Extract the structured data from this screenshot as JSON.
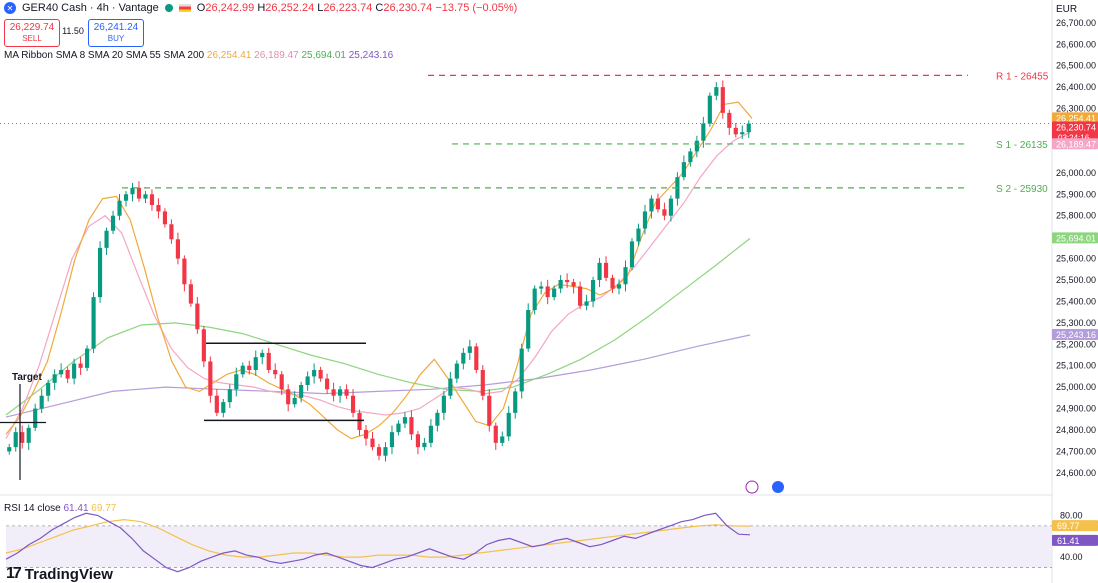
{
  "header": {
    "symbol": "GER40 Cash · 4h · Vantage",
    "open_label": "O",
    "open": "26,242.99",
    "high_label": "H",
    "high": "26,252.24",
    "low_label": "L",
    "low": "26,223.74",
    "close_label": "C",
    "close": "26,230.74",
    "change": "−13.75 (−0.05%)"
  },
  "trade": {
    "sell_price": "26,229.74",
    "sell_label": "SELL",
    "spread": "11.50",
    "buy_price": "26,241.24",
    "buy_label": "BUY"
  },
  "ma_legend": {
    "name": "MA Ribbon SMA 8 SMA 20 SMA 55 SMA 200",
    "v1": "26,254.41",
    "v2": "26,189.47",
    "v3": "25,694.01",
    "v4": "25,243.16"
  },
  "rsi_legend": {
    "name": "RSI 14 close",
    "v1": "61.41",
    "v2": "69.77"
  },
  "currency": "EUR",
  "brand": "TradingView",
  "colors": {
    "up": "#089981",
    "down": "#f23645",
    "sma8": "#f2a83b",
    "sma20": "#f4a6c6",
    "sma55": "#8ed57f",
    "sma200": "#b39ddb",
    "resistance": "#f23645",
    "support": "#4caf50",
    "rsi_fill": "#ede7f6",
    "rsi_line": "#7e57c2",
    "rsi_ma": "#f5c14b"
  },
  "chart_data": [
    {
      "type": "candlestick",
      "title": "GER40 Cash · 4h · Vantage",
      "y_range": [
        24520,
        26760
      ],
      "y_ticks": [
        "26,700.00",
        "26,600.00",
        "26,500.00",
        "26,400.00",
        "26,300.00",
        "26,000.00",
        "25,900.00",
        "25,800.00",
        "25,700.00",
        "25,600.00",
        "25,500.00",
        "25,400.00",
        "25,300.00",
        "25,200.00",
        "25,100.00",
        "25,000.00",
        "24,900.00",
        "24,800.00",
        "24,700.00",
        "24,600.00"
      ],
      "candles_approx_closes": [
        24720,
        24790,
        24740,
        24810,
        24900,
        24960,
        25020,
        25060,
        25080,
        25040,
        25110,
        25090,
        25180,
        25420,
        25650,
        25730,
        25800,
        25870,
        25900,
        25930,
        25880,
        25900,
        25850,
        25820,
        25760,
        25690,
        25600,
        25480,
        25390,
        25270,
        25120,
        24960,
        24880,
        24930,
        24990,
        25060,
        25100,
        25080,
        25140,
        25160,
        25080,
        25060,
        24990,
        24920,
        24950,
        25010,
        25050,
        25080,
        25040,
        24990,
        24960,
        24990,
        24960,
        24880,
        24800,
        24760,
        24720,
        24680,
        24720,
        24790,
        24830,
        24860,
        24780,
        24720,
        24740,
        24820,
        24880,
        24960,
        25040,
        25110,
        25160,
        25190,
        25080,
        24960,
        24820,
        24740,
        24770,
        24880,
        24980,
        25180,
        25360,
        25460,
        25470,
        25420,
        25460,
        25500,
        25490,
        25470,
        25380,
        25400,
        25500,
        25580,
        25510,
        25460,
        25480,
        25560,
        25680,
        25740,
        25820,
        25880,
        25830,
        25800,
        25880,
        25980,
        26050,
        26100,
        26150,
        26230,
        26360,
        26400,
        26280,
        26210,
        26180,
        26190,
        26230
      ],
      "sma8_approx": [
        24780,
        24860,
        24980,
        25120,
        25350,
        25600,
        25780,
        25880,
        25890,
        25780,
        25560,
        25320,
        25120,
        25000,
        24980,
        25020,
        25060,
        25080,
        25060,
        25020,
        24990,
        24960,
        24920,
        24860,
        24800,
        24760,
        24780,
        24820,
        24880,
        24960,
        25060,
        25130,
        25040,
        24940,
        24840,
        24820,
        24900,
        25100,
        25340,
        25440,
        25480,
        25470,
        25460,
        25430,
        25460,
        25520,
        25700,
        25860,
        25930,
        26000,
        26100,
        26200,
        26320,
        26330,
        26254.41
      ],
      "sma20_approx": [
        24760,
        24900,
        25100,
        25350,
        25600,
        25750,
        25800,
        25720,
        25520,
        25330,
        25180,
        25090,
        25040,
        25020,
        25010,
        25000,
        24980,
        24970,
        24960,
        24940,
        24910,
        24890,
        24880,
        24870,
        24880,
        24900,
        24950,
        25000,
        24990,
        24970,
        24980,
        25040,
        25140,
        25260,
        25340,
        25390,
        25420,
        25480,
        25560,
        25660,
        25760,
        25860,
        25980,
        26080,
        26150,
        26189.47
      ],
      "sma55_approx": [
        24870,
        24990,
        25120,
        25230,
        25290,
        25300,
        25280,
        25250,
        25200,
        25150,
        25110,
        25060,
        25020,
        24990,
        24980,
        25000,
        25060,
        25130,
        25220,
        25330,
        25450,
        25570,
        25694.01
      ],
      "sma200_approx": [
        24860,
        24920,
        24980,
        25000,
        24990,
        24980,
        24970,
        24980,
        24990,
        25010,
        25040,
        25080,
        25130,
        25190,
        25243.16
      ],
      "levels": [
        {
          "name": "R 1 - 26455",
          "value": 26455,
          "style": "dashed",
          "color": "#f23645"
        },
        {
          "name": "S 1 - 26135",
          "value": 26135,
          "style": "dashed",
          "color": "#4caf50"
        },
        {
          "name": "S 2 - 25930",
          "value": 25930,
          "style": "dashed",
          "color": "#4caf50"
        }
      ],
      "annotations": [
        {
          "text": "Target"
        }
      ],
      "price_labels": [
        {
          "value": "26,254.41",
          "color": "#f2a83b"
        },
        {
          "value": "26,230.74",
          "color": "#f23645",
          "sub": "03:24:16"
        },
        {
          "value": "26,189.47",
          "color": "#f4a6c6"
        },
        {
          "value": "25,694.01",
          "color": "#8ed57f"
        },
        {
          "value": "25,243.16",
          "color": "#b39ddb"
        }
      ]
    },
    {
      "type": "line",
      "title": "RSI 14 close",
      "y_range": [
        20,
        90
      ],
      "y_ticks": [
        "80.00",
        "40.00"
      ],
      "band": [
        70,
        30
      ],
      "rsi_values_approx": [
        38,
        44,
        52,
        58,
        66,
        72,
        78,
        82,
        80,
        74,
        68,
        58,
        46,
        38,
        30,
        26,
        30,
        36,
        40,
        44,
        46,
        42,
        40,
        36,
        34,
        36,
        38,
        42,
        44,
        40,
        36,
        32,
        30,
        34,
        38,
        40,
        44,
        48,
        44,
        40,
        38,
        44,
        52,
        56,
        58,
        54,
        50,
        52,
        56,
        58,
        54,
        50,
        52,
        56,
        60,
        58,
        62,
        66,
        70,
        74,
        76,
        80,
        82,
        70,
        62,
        61.41
      ],
      "rsi_ma_approx": [
        44,
        48,
        54,
        60,
        66,
        70,
        74,
        76,
        74,
        68,
        60,
        52,
        46,
        42,
        40,
        40,
        42,
        44,
        44,
        42,
        40,
        40,
        42,
        42,
        42,
        40,
        40,
        42,
        44,
        46,
        48,
        50,
        52,
        54,
        56,
        58,
        60,
        62,
        64,
        66,
        68,
        70,
        71,
        70,
        69.77
      ],
      "labels": [
        {
          "value": "69.77",
          "color": "#f5c14b"
        },
        {
          "value": "61.41",
          "color": "#7e57c2"
        }
      ]
    }
  ]
}
